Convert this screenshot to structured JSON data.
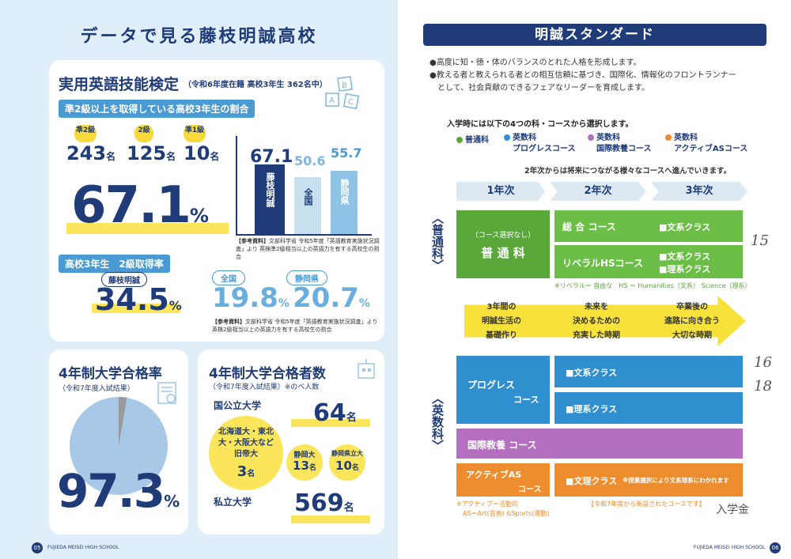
{
  "left": {
    "title": "データで見る藤枝明誠高校",
    "eiken": {
      "title": "実用英語技能検定",
      "subtitle": "（令和6年度在籍 高校3年生 362名中）",
      "pill1": "準2級以上を取得している高校3年生の割合",
      "grades": [
        {
          "badge": "準2級",
          "count": "243",
          "unit": "名"
        },
        {
          "badge": "2級",
          "count": "125",
          "unit": "名"
        },
        {
          "badge": "準1級",
          "count": "10",
          "unit": "名"
        }
      ],
      "big_value": "67.1",
      "big_unit": "%",
      "bars": [
        {
          "label": "藤枝明誠",
          "value": 67.1,
          "value_text": "67.1"
        },
        {
          "label": "全国",
          "value": 50.6,
          "value_text": "50.6"
        },
        {
          "label": "静岡県",
          "value": 55.7,
          "value_text": "55.7"
        }
      ],
      "ref1_label": "【参考資料】",
      "ref1_text": "文部科学省 令和5年度「英語教育実施状況調査」より 英検準2級相当以上の英語力を有する高校生の割合",
      "pill2": "高校3年生　2級取得率",
      "rates": [
        {
          "label": "藤枝明誠",
          "value": "34.5",
          "unit": "%"
        },
        {
          "label": "全国",
          "value": "19.8",
          "unit": "%"
        },
        {
          "label": "静岡県",
          "value": "20.7",
          "unit": "%"
        }
      ],
      "ref2_label": "【参考資料】",
      "ref2_text": "文部科学省 令和5年度「英語教育実施状況調査」より 英検2級相当以上の英語力を有する高校生の割合"
    },
    "univ_rate": {
      "title": "4年制大学合格率",
      "subtitle": "（令和7年度入試結果）",
      "value": "97.3",
      "unit": "%",
      "pie_fraction": 0.973
    },
    "univ_count": {
      "title": "4年制大学合格者数",
      "subtitle": "（令和7年度入試結果）※のべ人数",
      "public_label": "国公立大学",
      "public_value": "64",
      "unit": "名",
      "former_imperial_text": "北海道大・東北大・大阪大など旧帝大",
      "former_imperial_value": "3",
      "shizuoka_label": "静岡大",
      "shizuoka_value": "13",
      "pref_label": "静岡県立大",
      "pref_value": "10",
      "private_label": "私立大学",
      "private_value": "569"
    },
    "footer": {
      "page": "05",
      "school": "FUJIEDA MEISEI HIGH SCHOOL"
    }
  },
  "right": {
    "title": "明誠スタンダード",
    "bullets": [
      "●高度に知・徳・体のバランスのとれた人格を形成します。",
      "●教える者と教えられる者との相互信頼に基づき、国際化、情報化のフロントランナー",
      "　として、社会貢献のできるフェアなリーダーを育成します。"
    ],
    "intro": "入学時には以下の4つの科・コースから選択します。",
    "courses": [
      {
        "name": "普通科",
        "color": "#5aa83a"
      },
      {
        "name": "英数科 プログレスコース",
        "color": "#2f8fcf"
      },
      {
        "name": "英数科 国際教養コース",
        "color": "#b56fc0"
      },
      {
        "name": "英数科 アクティブASコース",
        "color": "#ee8d2e"
      }
    ],
    "course_labels": [
      "普通科",
      "英数科",
      "プログレスコース",
      "英数科",
      "国際教養コース",
      "英数科",
      "アクティブASコース"
    ],
    "year2_note": "2年次からは将来につながる様々なコースへ進んでいきます。",
    "years": [
      "1年次",
      "2年次",
      "3年次"
    ],
    "futsuka": {
      "side_label": "普通科",
      "sub": "（コース選択なし）",
      "main": "普 通 科",
      "general": "総 合 コース",
      "general_class": "■文系クラス",
      "liberal": "リベラルHSコース",
      "liberal_classes": [
        "■文系クラス",
        "■理系クラス"
      ],
      "note": "※リベラル＝ 自由な　HS ＝ Humanities（文系） Science（理系）"
    },
    "phases": [
      [
        "3年間の",
        "明誠生活の",
        "基礎作り"
      ],
      [
        "未来を",
        "決めるための",
        "充実した時期"
      ],
      [
        "卒業後の",
        "進路に向き合う",
        "大切な時期"
      ]
    ],
    "eisuka": {
      "side_label": "英数科",
      "progress_a": "プログレス",
      "progress_b": "コース",
      "progress_classes": [
        "■文系クラス",
        "■理系クラス"
      ],
      "kokusai": "国際教養 コース",
      "active_a": "アクティブAS",
      "active_b": "コース",
      "active_class": "■文理クラス",
      "active_class_note": "※授業選択により文系理系にわかれます",
      "active_note1": "※アクティブ＝活動的",
      "active_note2": "AS＝Art(芸術) &Sports(運動)",
      "new_note": "【令和7年度から新設されたコースです】"
    },
    "handwriting": [
      "15",
      "16",
      "18",
      "入学金"
    ],
    "footer": {
      "page": "06",
      "school": "FUJIEDA MEISEI HIGH SCHOOL"
    }
  }
}
